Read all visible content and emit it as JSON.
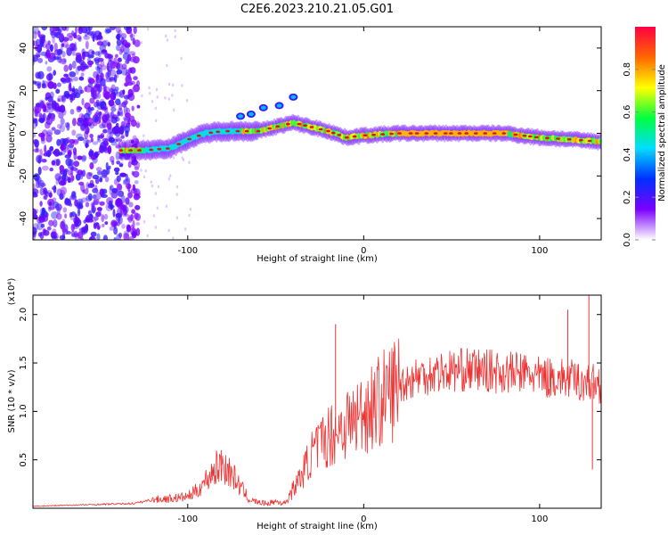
{
  "title": "C2E6.2023.210.21.05.G01",
  "colors": {
    "line": "#ee3333",
    "ridge_core": "#dd1111",
    "scatter": "#7a1fe0"
  },
  "chart_data": [
    {
      "type": "heatmap",
      "xlabel": "Height of straight line (km)",
      "ylabel": "Frequency (Hz)",
      "xlim": [
        -188,
        135
      ],
      "ylim": [
        -50,
        50
      ],
      "xticks": [
        -100,
        0,
        100
      ],
      "xtick_labels": [
        "-100",
        "0",
        "100"
      ],
      "yticks": [
        -40,
        -20,
        0,
        20,
        40
      ],
      "ytick_labels": [
        "-40",
        "-20",
        "0",
        "20",
        "40"
      ],
      "colorbar": {
        "label": "Normalized spectral amplitude",
        "range": [
          0,
          1
        ],
        "ticks": [
          0.0,
          0.2,
          0.4,
          0.6,
          0.8
        ],
        "tick_labels": [
          "0.0",
          "0.2",
          "0.4",
          "0.6",
          "0.8"
        ],
        "colormap": [
          "#ffffff",
          "#7b00ff",
          "#0030ff",
          "#00ddff",
          "#00ff40",
          "#ffff00",
          "#ff6600",
          "#ff0044"
        ]
      },
      "ridge": {
        "x": [
          -138,
          -125,
          -110,
          -100,
          -90,
          -80,
          -70,
          -60,
          -50,
          -40,
          -30,
          -20,
          -10,
          0,
          20,
          40,
          60,
          80,
          100,
          120,
          135
        ],
        "y": [
          -8,
          -8,
          -7,
          -3,
          0,
          1,
          1,
          1,
          3,
          5,
          3,
          1,
          -2,
          -1,
          0,
          0,
          0,
          0,
          -2,
          -3,
          -4
        ]
      },
      "blobs": [
        {
          "x": -57,
          "y": 12
        },
        {
          "x": -48,
          "y": 13
        },
        {
          "x": -40,
          "y": 17
        },
        {
          "x": -70,
          "y": 8
        },
        {
          "x": -64,
          "y": 9
        }
      ]
    },
    {
      "type": "line",
      "xlabel": "Height of straight line (km)",
      "ylabel": "SNR (10 * v/v)",
      "multiplier_label": "(x10⁴)",
      "xlim": [
        -188,
        135
      ],
      "ylim": [
        0,
        22000
      ],
      "xticks": [
        -100,
        0,
        100
      ],
      "xtick_labels": [
        "-100",
        "0",
        "100"
      ],
      "yticks": [
        5000,
        10000,
        15000,
        20000
      ],
      "ytick_labels": [
        "0.5",
        "1.0",
        "1.5",
        "2.0"
      ],
      "series": [
        {
          "x": [
            -188,
            -170,
            -150,
            -130,
            -120,
            -110,
            -100,
            -95,
            -90,
            -85,
            -80,
            -75,
            -70,
            -65,
            -60,
            -55,
            -50,
            -45,
            -40,
            -35,
            -30,
            -25,
            -20,
            -15,
            -10,
            -5,
            0,
            10,
            20,
            30,
            40,
            50,
            60,
            70,
            80,
            90,
            100,
            110,
            120,
            128,
            135
          ],
          "y": [
            200,
            300,
            400,
            500,
            900,
            1000,
            1200,
            1800,
            2800,
            4000,
            4500,
            3500,
            2200,
            900,
            600,
            500,
            700,
            500,
            2000,
            3500,
            5500,
            6500,
            7500,
            8000,
            8800,
            9200,
            10000,
            11200,
            12800,
            13600,
            14000,
            14200,
            14300,
            14200,
            14000,
            14000,
            13500,
            13500,
            13200,
            13000,
            12800
          ]
        }
      ],
      "peaks": [
        {
          "x": -81,
          "y": 6000
        },
        {
          "x": -16,
          "y": 19000
        },
        {
          "x": 128,
          "y": 22000
        },
        {
          "x": 116,
          "y": 20500
        },
        {
          "x": 130,
          "y": 4000
        }
      ]
    }
  ]
}
